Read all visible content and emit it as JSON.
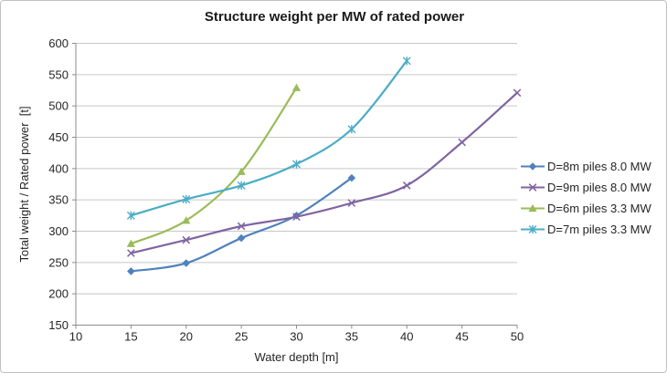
{
  "chart_data": {
    "type": "line",
    "title": "Structure weight per MW of rated power",
    "xlabel": "Water depth [m]",
    "ylabel": "Total weight / Rated power  [t]",
    "xlim": [
      10,
      50
    ],
    "ylim": [
      150,
      600
    ],
    "xticks": [
      10,
      15,
      20,
      25,
      30,
      35,
      40,
      45,
      50
    ],
    "yticks": [
      150,
      200,
      250,
      300,
      350,
      400,
      450,
      500,
      550,
      600
    ],
    "grid": "horizontal-only",
    "legend_position": "right-outside",
    "smooth_lines": true,
    "colors": {
      "grid": "#C7C7C7",
      "axis": "#8C8C8C",
      "text": "#262626",
      "frame_border": "#C0C0C0",
      "background": "#FFFFFF"
    },
    "series": [
      {
        "name": "D=8m piles 8.0 MW",
        "color": "#4F81BD",
        "marker": "diamond",
        "x": [
          15,
          20,
          25,
          30,
          35
        ],
        "y": [
          236,
          249,
          289,
          325,
          385
        ]
      },
      {
        "name": "D=9m piles 8.0 MW",
        "color": "#8064A2",
        "marker": "x",
        "x": [
          15,
          20,
          25,
          30,
          35,
          40,
          45,
          50
        ],
        "y": [
          265,
          286,
          308,
          323,
          345,
          373,
          442,
          521
        ]
      },
      {
        "name": "D=6m piles 3.3 MW",
        "color": "#9BBB59",
        "marker": "triangle",
        "x": [
          15,
          20,
          25,
          30
        ],
        "y": [
          280,
          317,
          395,
          529
        ]
      },
      {
        "name": "D=7m piles 3.3 MW",
        "color": "#4BACC6",
        "marker": "asterisk",
        "x": [
          15,
          20,
          25,
          30,
          35,
          40
        ],
        "y": [
          325,
          351,
          373,
          407,
          463,
          572
        ]
      }
    ]
  }
}
